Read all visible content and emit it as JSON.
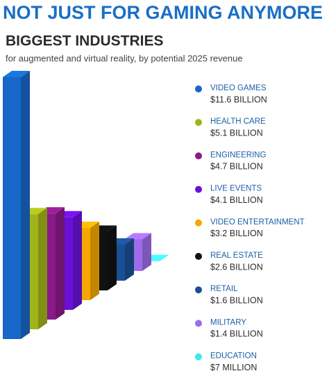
{
  "chart_data": {
    "type": "bar",
    "title": "NOT JUST FOR GAMING ANYMORE",
    "subtitle": "BIGGEST INDUSTRIES",
    "description": "for augmented and virtual reality, by potential 2025 revenue",
    "categories": [
      "VIDEO GAMES",
      "HEALTH CARE",
      "ENGINEERING",
      "LIVE EVENTS",
      "VIDEO ENTERTAINMENT",
      "REAL ESTATE",
      "RETAIL",
      "MILITARY",
      "EDUCATION"
    ],
    "values": [
      11.6,
      5.1,
      4.7,
      4.1,
      3.2,
      2.6,
      1.6,
      1.4,
      0.007
    ],
    "value_labels": [
      "$11.6 BILLION",
      "$5.1 BILLION",
      "$4.7 BILLION",
      "$4.1 BILLION",
      "$3.2 BILLION",
      "$2.6 BILLION",
      "$1.6 BILLION",
      "$1.4 BILLION",
      "$7 MILLION"
    ],
    "colors": [
      "#1667c7",
      "#a3b31b",
      "#8a1a88",
      "#6a10d8",
      "#f5a800",
      "#111111",
      "#1b4f93",
      "#9d6ce8",
      "#3fe6f2"
    ]
  }
}
